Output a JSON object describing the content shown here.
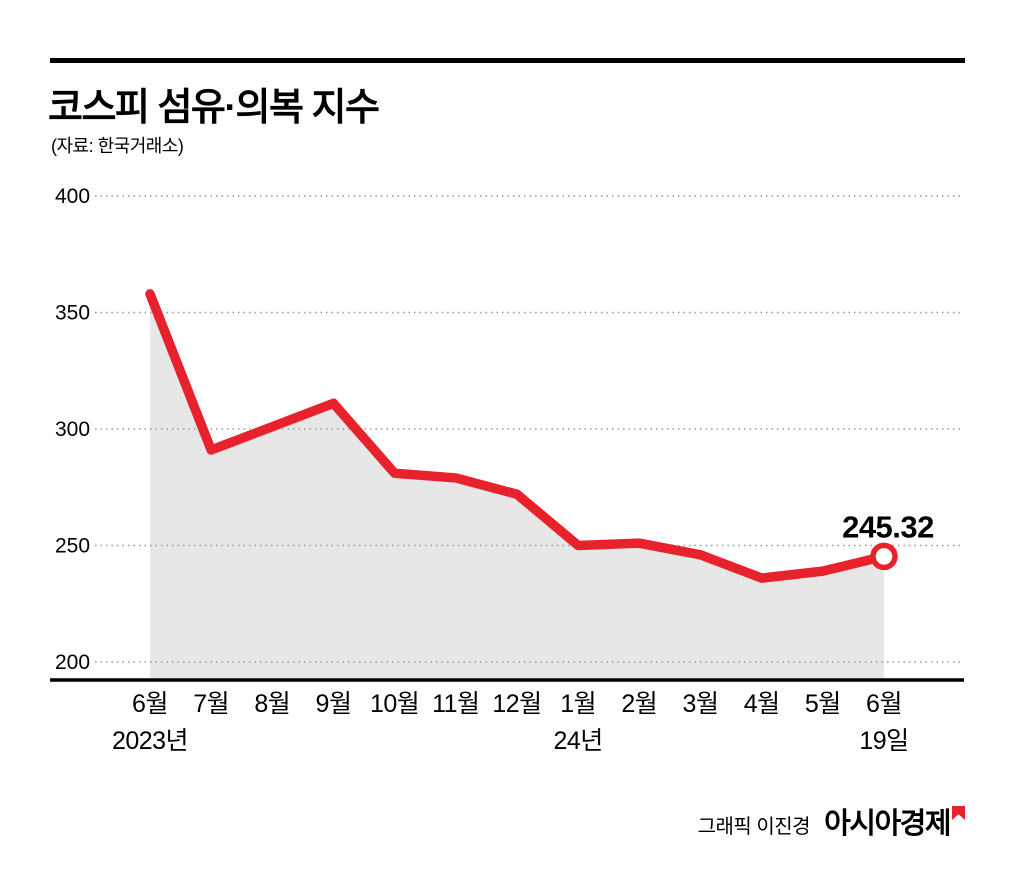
{
  "header": {
    "title": "코스피 섬유·의복 지수",
    "source": "(자료: 한국거래소)"
  },
  "chart_data": {
    "type": "area",
    "title": "코스피 섬유·의복 지수",
    "source_note": "(자료: 한국거래소)",
    "categories": [
      "6월",
      "7월",
      "8월",
      "9월",
      "10월",
      "11월",
      "12월",
      "1월",
      "2월",
      "3월",
      "4월",
      "5월",
      "6월"
    ],
    "values": [
      358,
      291,
      301,
      311,
      281,
      279,
      272,
      250,
      251,
      246,
      236,
      239,
      245.32
    ],
    "x_sub_labels": [
      {
        "index": 0,
        "label": "2023년"
      },
      {
        "index": 7,
        "label": "24년"
      },
      {
        "index": 12,
        "label": "19일"
      }
    ],
    "end_value_label": "245.32",
    "ylim": [
      200,
      400
    ],
    "yticks": [
      400,
      350,
      300,
      250,
      200
    ],
    "xlabel": "",
    "ylabel": "",
    "grid": "dotted-horizontal",
    "legend": "none",
    "line_color": "#e8222d",
    "area_fill_color": "#e7e7e7",
    "marker": "open-circle-on-last-point"
  },
  "footer": {
    "credit": "그래픽 이진경",
    "brand": "아시아경제",
    "brand_mark_color": "#e8222d"
  }
}
